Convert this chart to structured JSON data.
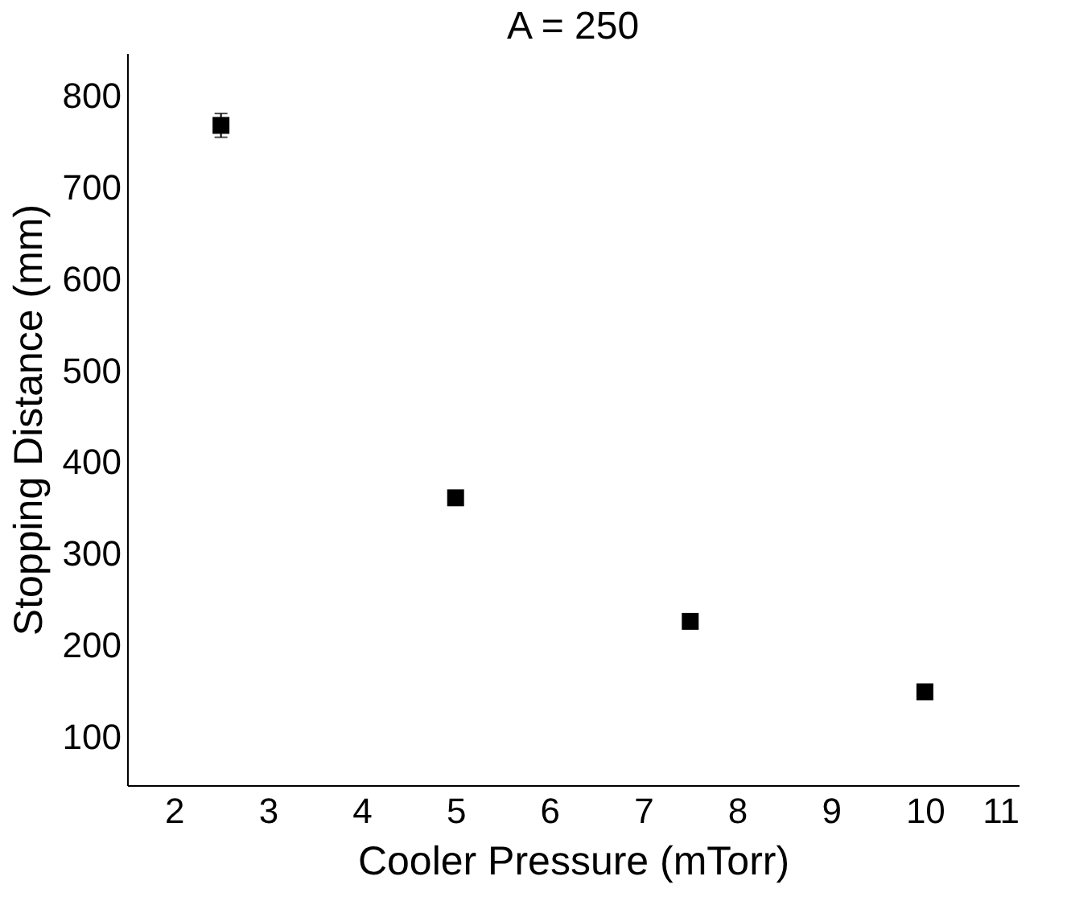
{
  "chart_data": {
    "type": "scatter",
    "title": "A = 250",
    "xlabel": "Cooler Pressure (mTorr)",
    "ylabel": "Stopping Distance (mm)",
    "x": [
      2.5,
      5,
      7.5,
      10
    ],
    "values": [
      768,
      361,
      226,
      149
    ],
    "errors": [
      13,
      null,
      null,
      null
    ],
    "color": "#000000",
    "marker": "square",
    "xlim": [
      1.5,
      11
    ],
    "xticks": [
      2,
      3,
      4,
      5,
      6,
      7,
      8,
      9,
      10,
      11
    ],
    "ylim": [
      47,
      847
    ],
    "yticks": [
      100,
      200,
      300,
      400,
      500,
      600,
      700,
      800
    ],
    "grid": false
  }
}
